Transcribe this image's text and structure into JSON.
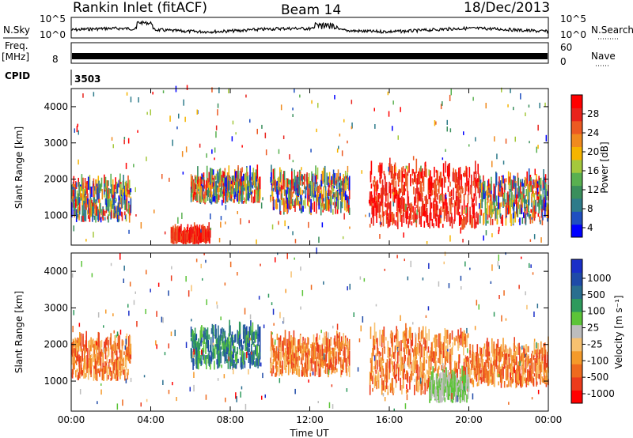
{
  "header": {
    "station": "Rankin Inlet (fitACF)",
    "beam": "Beam 14",
    "date": "18/Dec/2013"
  },
  "top_panels": {
    "nsky_label": "N.Sky",
    "nsearch_label": "N.Search",
    "freq_label": "Freq.",
    "freq_unit": "[MHz]",
    "nave_label": "Nave",
    "cpid_label": "CPID",
    "cpid_value": "3503",
    "noise_ticks_left": [
      "10^5",
      "10^0"
    ],
    "noise_ticks_right": [
      "10^5",
      "10^0"
    ],
    "freq_tick_left": "8",
    "nave_ticks": [
      "60",
      "0"
    ]
  },
  "x_axis": {
    "label": "Time UT",
    "ticks": [
      "00:00",
      "04:00",
      "08:00",
      "12:00",
      "16:00",
      "20:00",
      "00:00"
    ]
  },
  "chart_data": [
    {
      "type": "heatmap",
      "panel": "power",
      "ylabel": "Slant Range [km]",
      "ylim": [
        180,
        4500
      ],
      "xlim_hours": [
        0,
        24
      ],
      "yticks": [
        1000,
        2000,
        3000,
        4000
      ],
      "colorbar": {
        "label": "Power [dB]",
        "ticks": [
          "28",
          "24",
          "20",
          "16",
          "12",
          "8",
          "4"
        ],
        "colors": [
          "#0000ff",
          "#1f4fc0",
          "#2e7b8a",
          "#3a8f5c",
          "#59b050",
          "#a4c83c",
          "#f5b400",
          "#f08a1e",
          "#ec5a22",
          "#e8231c",
          "#ff0000"
        ]
      },
      "echo_regions": [
        {
          "t": [
            0.0,
            3.0
          ],
          "r": [
            800,
            1800
          ],
          "level": "mixed"
        },
        {
          "t": [
            5.0,
            7.0
          ],
          "r": [
            200,
            400
          ],
          "level": "high"
        },
        {
          "t": [
            6.0,
            9.5
          ],
          "r": [
            1300,
            2000
          ],
          "level": "mixed"
        },
        {
          "t": [
            10.0,
            14.0
          ],
          "r": [
            1000,
            2000
          ],
          "level": "mixed"
        },
        {
          "t": [
            15.0,
            20.5
          ],
          "r": [
            600,
            2200
          ],
          "level": "high"
        },
        {
          "t": [
            20.5,
            24.0
          ],
          "r": [
            700,
            1900
          ],
          "level": "mixed"
        }
      ]
    },
    {
      "type": "heatmap",
      "panel": "velocity",
      "ylabel": "Slant Range [km]",
      "ylim": [
        180,
        4500
      ],
      "xlim_hours": [
        0,
        24
      ],
      "yticks": [
        1000,
        2000,
        3000,
        4000
      ],
      "colorbar": {
        "label": "Velocity [m s⁻¹]",
        "ticks": [
          "1000",
          "500",
          "100",
          "25",
          "-25",
          "-100",
          "-500",
          "-1000"
        ],
        "colors": [
          "#ff0000",
          "#ec3b1c",
          "#ef6a1e",
          "#f59a2a",
          "#f7c170",
          "#bdbdbd",
          "#5cc438",
          "#2e9a5c",
          "#2a6e8f",
          "#1f4aa8",
          "#1a2fc8"
        ]
      },
      "echo_regions": [
        {
          "t": [
            0.0,
            3.0
          ],
          "r": [
            1000,
            2000
          ],
          "level": "negative"
        },
        {
          "t": [
            6.0,
            9.5
          ],
          "r": [
            1300,
            2300
          ],
          "level": "positive"
        },
        {
          "t": [
            10.0,
            14.0
          ],
          "r": [
            1100,
            2000
          ],
          "level": "negative"
        },
        {
          "t": [
            15.0,
            20.0
          ],
          "r": [
            600,
            2200
          ],
          "level": "negative"
        },
        {
          "t": [
            18.0,
            20.0
          ],
          "r": [
            400,
            1000
          ],
          "level": "ground"
        },
        {
          "t": [
            20.0,
            24.0
          ],
          "r": [
            800,
            1800
          ],
          "level": "negative"
        }
      ]
    }
  ]
}
